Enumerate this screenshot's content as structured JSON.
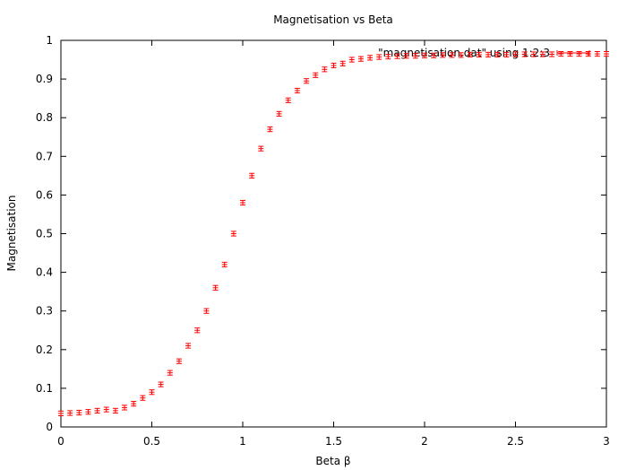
{
  "chart_data": {
    "type": "scatter",
    "title": "Magnetisation vs Beta",
    "xlabel": "Beta β",
    "ylabel": "Magnetisation",
    "xlim": [
      0,
      3
    ],
    "ylim": [
      0,
      1
    ],
    "x_ticks": [
      0,
      0.5,
      1,
      1.5,
      2,
      2.5,
      3
    ],
    "x_tick_labels": [
      "0",
      "0.5",
      "1",
      "1.5",
      "2",
      "2.5",
      "3"
    ],
    "y_ticks": [
      0,
      0.1,
      0.2,
      0.3,
      0.4,
      0.5,
      0.6,
      0.7,
      0.8,
      0.9,
      1
    ],
    "y_tick_labels": [
      "0",
      "0.1",
      "0.2",
      "0.3",
      "0.4",
      "0.5",
      "0.6",
      "0.7",
      "0.8",
      "0.9",
      "1"
    ],
    "grid": false,
    "legend_position": "top-right",
    "series": [
      {
        "name": "\"magnetisation.dat\" using 1:2:3",
        "color": "#ff0000",
        "marker": "errorbar-cross",
        "x": [
          0.0,
          0.05,
          0.1,
          0.15,
          0.2,
          0.25,
          0.3,
          0.35,
          0.4,
          0.45,
          0.5,
          0.55,
          0.6,
          0.65,
          0.7,
          0.75,
          0.8,
          0.85,
          0.9,
          0.95,
          1.0,
          1.05,
          1.1,
          1.15,
          1.2,
          1.25,
          1.3,
          1.35,
          1.4,
          1.45,
          1.5,
          1.55,
          1.6,
          1.65,
          1.7,
          1.75,
          1.8,
          1.85,
          1.9,
          1.95,
          2.0,
          2.05,
          2.1,
          2.15,
          2.2,
          2.25,
          2.3,
          2.35,
          2.4,
          2.45,
          2.5,
          2.55,
          2.6,
          2.65,
          2.7,
          2.75,
          2.8,
          2.85,
          2.9,
          2.95,
          3.0
        ],
        "y": [
          0.035,
          0.036,
          0.037,
          0.039,
          0.042,
          0.045,
          0.042,
          0.05,
          0.06,
          0.075,
          0.09,
          0.11,
          0.14,
          0.17,
          0.21,
          0.25,
          0.3,
          0.36,
          0.42,
          0.5,
          0.58,
          0.65,
          0.72,
          0.77,
          0.81,
          0.845,
          0.87,
          0.895,
          0.91,
          0.925,
          0.935,
          0.94,
          0.95,
          0.952,
          0.955,
          0.957,
          0.958,
          0.959,
          0.96,
          0.96,
          0.961,
          0.961,
          0.962,
          0.962,
          0.962,
          0.963,
          0.963,
          0.963,
          0.963,
          0.963,
          0.964,
          0.964,
          0.964,
          0.964,
          0.964,
          0.965,
          0.965,
          0.965,
          0.965,
          0.965,
          0.965
        ],
        "err": [
          0.006,
          0.006,
          0.006,
          0.006,
          0.006,
          0.006,
          0.006,
          0.006,
          0.006,
          0.006,
          0.006,
          0.006,
          0.006,
          0.006,
          0.006,
          0.006,
          0.006,
          0.006,
          0.006,
          0.006,
          0.006,
          0.006,
          0.006,
          0.006,
          0.006,
          0.006,
          0.006,
          0.006,
          0.006,
          0.006,
          0.006,
          0.006,
          0.006,
          0.006,
          0.006,
          0.006,
          0.006,
          0.006,
          0.006,
          0.006,
          0.006,
          0.006,
          0.006,
          0.006,
          0.006,
          0.006,
          0.006,
          0.006,
          0.006,
          0.006,
          0.006,
          0.006,
          0.006,
          0.006,
          0.006,
          0.006,
          0.006,
          0.006,
          0.006,
          0.006,
          0.006
        ]
      }
    ]
  }
}
